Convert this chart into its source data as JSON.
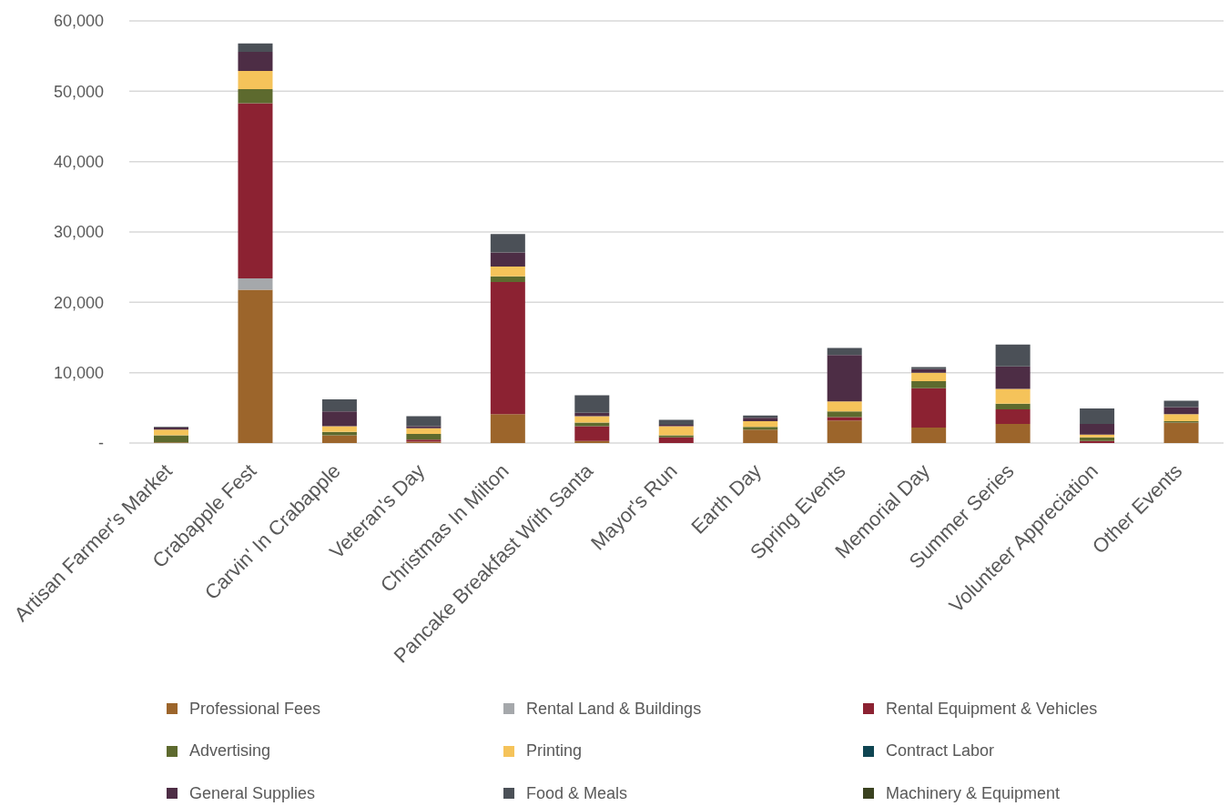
{
  "chart_data": {
    "type": "bar",
    "stacked": true,
    "categories": [
      "Artisan Farmer's Market",
      "Crabapple Fest",
      "Carvin' In Crabapple",
      "Veteran's Day",
      "Christmas In Milton",
      "Pancake Breakfast With Santa",
      "Mayor's Run",
      "Earth Day",
      "Spring Events",
      "Memorial Day",
      "Summer Series",
      "Volunteer Appreciation",
      "Other Events"
    ],
    "series": [
      {
        "name": "Professional Fees",
        "color": "#9c652b",
        "values": [
          100,
          21800,
          1100,
          200,
          4100,
          300,
          0,
          1900,
          3200,
          2200,
          2700,
          0,
          2900
        ]
      },
      {
        "name": "Rental Land & Buildings",
        "color": "#a5a8ab",
        "values": [
          0,
          1600,
          0,
          0,
          0,
          0,
          0,
          0,
          0,
          0,
          0,
          0,
          0
        ]
      },
      {
        "name": "Rental Equipment & Vehicles",
        "color": "#8c2232",
        "values": [
          0,
          24900,
          0,
          300,
          18800,
          2100,
          800,
          0,
          500,
          5600,
          2100,
          300,
          0
        ]
      },
      {
        "name": "Advertising",
        "color": "#5d6a2e",
        "values": [
          1000,
          2000,
          500,
          800,
          800,
          500,
          300,
          400,
          800,
          1000,
          800,
          500,
          200
        ]
      },
      {
        "name": "Printing",
        "color": "#f5c35a",
        "values": [
          800,
          2600,
          800,
          800,
          1400,
          900,
          1300,
          800,
          1400,
          1200,
          2100,
          400,
          1000
        ]
      },
      {
        "name": "Contract Labor",
        "color": "#0f4552",
        "values": [
          0,
          0,
          0,
          0,
          0,
          0,
          0,
          0,
          0,
          0,
          0,
          0,
          0
        ]
      },
      {
        "name": "General Supplies",
        "color": "#4d2d45",
        "values": [
          300,
          2700,
          2100,
          300,
          2000,
          500,
          200,
          500,
          6600,
          500,
          3200,
          1500,
          1000
        ]
      },
      {
        "name": "Food & Meals",
        "color": "#4b5057",
        "values": [
          100,
          1200,
          1700,
          1400,
          2600,
          2500,
          700,
          300,
          1000,
          300,
          3100,
          2200,
          900
        ]
      },
      {
        "name": "Machinery & Equipment",
        "color": "#3a4220",
        "values": [
          0,
          0,
          0,
          0,
          0,
          0,
          0,
          0,
          0,
          0,
          0,
          0,
          0
        ]
      }
    ],
    "ylim": [
      0,
      60000
    ],
    "yticks": [
      {
        "value": 0,
        "label": "-"
      },
      {
        "value": 10000,
        "label": "10,000"
      },
      {
        "value": 20000,
        "label": "20,000"
      },
      {
        "value": 30000,
        "label": "30,000"
      },
      {
        "value": 40000,
        "label": "40,000"
      },
      {
        "value": 50000,
        "label": "50,000"
      },
      {
        "value": 60000,
        "label": "60,000"
      }
    ],
    "grid": "y",
    "legend": "bottom"
  }
}
